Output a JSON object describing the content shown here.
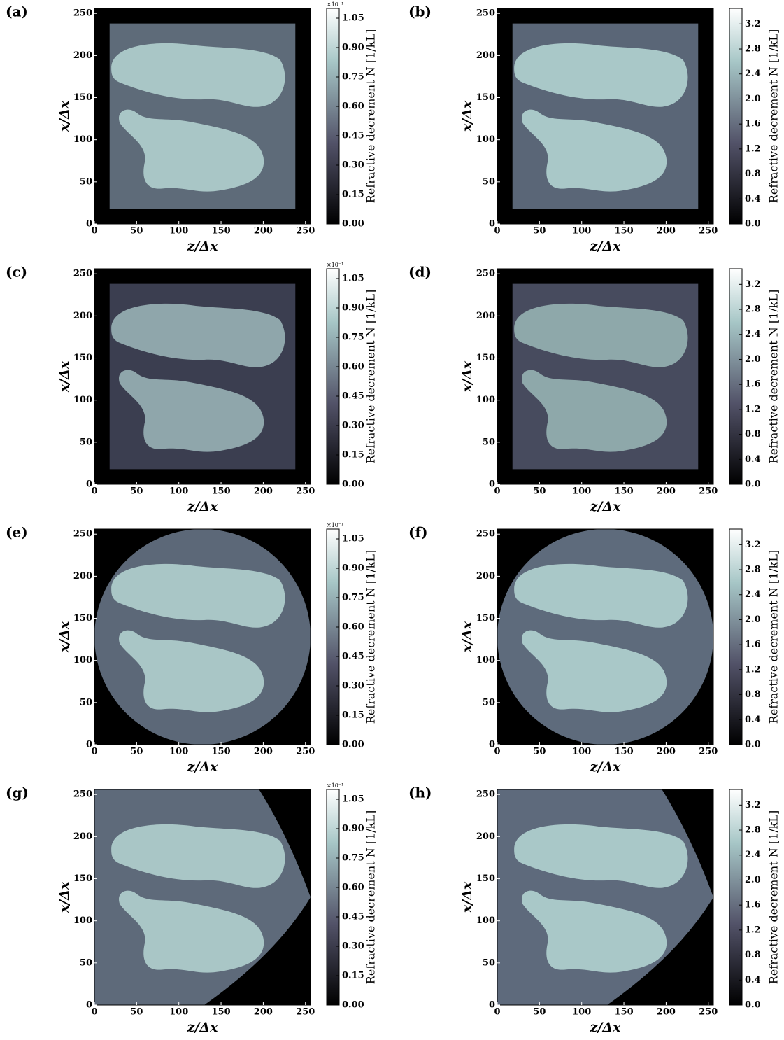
{
  "chart_data": [
    {
      "type": "image",
      "label": "(a)",
      "xlabel": "z/Δx",
      "ylabel": "x/Δx",
      "xlim": [
        0,
        256
      ],
      "ylim": [
        0,
        256
      ],
      "xticks": [
        0,
        50,
        100,
        150,
        200,
        250
      ],
      "yticks": [
        0,
        50,
        100,
        150,
        200,
        250
      ],
      "colorbar": {
        "label": "Refractive decrement N [1/kL]",
        "multiplier": "×10⁻¹",
        "lim": [
          0,
          1.1
        ],
        "ticks": [
          {
            "value": 0,
            "label": "0.00"
          },
          0.15,
          {
            "value": 0.3,
            "label": "0.30"
          },
          0.45,
          {
            "value": 0.6,
            "label": "0.60"
          },
          0.75,
          {
            "value": 0.9,
            "label": "0.90"
          },
          1.05
        ]
      }
    },
    {
      "type": "image",
      "label": "(b)",
      "xlabel": "z/Δx",
      "ylabel": "x/Δx",
      "xlim": [
        0,
        256
      ],
      "ylim": [
        0,
        256
      ],
      "xticks": [
        0,
        50,
        100,
        150,
        200,
        250
      ],
      "yticks": [
        0,
        50,
        100,
        150,
        200,
        250
      ],
      "colorbar": {
        "label": "Refractive decrement N [1/kL]",
        "lim": [
          0,
          3.45
        ],
        "ticks": [
          {
            "value": 0,
            "label": "0.0"
          },
          0.4,
          0.8,
          1.2,
          1.6,
          {
            "value": 2,
            "label": "2.0"
          },
          2.4,
          2.8,
          3.2
        ]
      }
    },
    {
      "type": "image",
      "label": "(c)",
      "xlabel": "z/Δx",
      "ylabel": "x/Δx",
      "xlim": [
        0,
        256
      ],
      "ylim": [
        0,
        256
      ],
      "xticks": [
        0,
        50,
        100,
        150,
        200,
        250
      ],
      "yticks": [
        0,
        50,
        100,
        150,
        200,
        250
      ],
      "colorbar": {
        "label": "Refractive decrement N [1/kL]",
        "multiplier": "×10⁻¹",
        "lim": [
          0,
          1.1
        ],
        "ticks": [
          {
            "value": 0,
            "label": "0.00"
          },
          0.15,
          {
            "value": 0.3,
            "label": "0.30"
          },
          0.45,
          {
            "value": 0.6,
            "label": "0.60"
          },
          0.75,
          {
            "value": 0.9,
            "label": "0.90"
          },
          1.05
        ]
      }
    },
    {
      "type": "image",
      "label": "(d)",
      "xlabel": "z/Δx",
      "ylabel": "x/Δx",
      "xlim": [
        0,
        256
      ],
      "ylim": [
        0,
        256
      ],
      "xticks": [
        0,
        50,
        100,
        150,
        200,
        250
      ],
      "yticks": [
        0,
        50,
        100,
        150,
        200,
        250
      ],
      "colorbar": {
        "label": "Refractive decrement N [1/kL]",
        "lim": [
          0,
          3.45
        ],
        "ticks": [
          {
            "value": 0,
            "label": "0.0"
          },
          0.4,
          0.8,
          1.2,
          1.6,
          {
            "value": 2,
            "label": "2.0"
          },
          2.4,
          2.8,
          3.2
        ]
      }
    },
    {
      "type": "image",
      "label": "(e)",
      "xlabel": "z/Δx",
      "ylabel": "x/Δx",
      "xlim": [
        0,
        256
      ],
      "ylim": [
        0,
        256
      ],
      "xticks": [
        0,
        50,
        100,
        150,
        200,
        250
      ],
      "yticks": [
        0,
        50,
        100,
        150,
        200,
        250
      ],
      "colorbar": {
        "label": "Refractive decrement N [1/kL]",
        "multiplier": "×10⁻¹",
        "lim": [
          0,
          1.1
        ],
        "ticks": [
          {
            "value": 0,
            "label": "0.00"
          },
          0.15,
          {
            "value": 0.3,
            "label": "0.30"
          },
          0.45,
          {
            "value": 0.6,
            "label": "0.60"
          },
          0.75,
          {
            "value": 0.9,
            "label": "0.90"
          },
          1.05
        ]
      }
    },
    {
      "type": "image",
      "label": "(f)",
      "xlabel": "z/Δx",
      "ylabel": "x/Δx",
      "xlim": [
        0,
        256
      ],
      "ylim": [
        0,
        256
      ],
      "xticks": [
        0,
        50,
        100,
        150,
        200,
        250
      ],
      "yticks": [
        0,
        50,
        100,
        150,
        200,
        250
      ],
      "colorbar": {
        "label": "Refractive decrement N [1/kL]",
        "lim": [
          0,
          3.45
        ],
        "ticks": [
          {
            "value": 0,
            "label": "0.0"
          },
          0.4,
          0.8,
          1.2,
          1.6,
          {
            "value": 2,
            "label": "2.0"
          },
          2.4,
          2.8,
          3.2
        ]
      }
    },
    {
      "type": "image",
      "label": "(g)",
      "xlabel": "z/Δx",
      "ylabel": "x/Δx",
      "xlim": [
        0,
        256
      ],
      "ylim": [
        0,
        256
      ],
      "xticks": [
        0,
        50,
        100,
        150,
        200,
        250
      ],
      "yticks": [
        0,
        50,
        100,
        150,
        200,
        250
      ],
      "colorbar": {
        "label": "Refractive decrement N [1/kL]",
        "multiplier": "×10⁻¹",
        "lim": [
          0,
          1.1
        ],
        "ticks": [
          {
            "value": 0,
            "label": "0.00"
          },
          0.15,
          {
            "value": 0.3,
            "label": "0.30"
          },
          0.45,
          {
            "value": 0.6,
            "label": "0.60"
          },
          0.75,
          {
            "value": 0.9,
            "label": "0.90"
          },
          1.05
        ]
      }
    },
    {
      "type": "image",
      "label": "(h)",
      "xlabel": "z/Δx",
      "ylabel": "x/Δx",
      "xlim": [
        0,
        256
      ],
      "ylim": [
        0,
        256
      ],
      "xticks": [
        0,
        50,
        100,
        150,
        200,
        250
      ],
      "yticks": [
        0,
        50,
        100,
        150,
        200,
        250
      ],
      "colorbar": {
        "label": "Refractive decrement N [1/kL]",
        "lim": [
          0,
          3.45
        ],
        "ticks": [
          {
            "value": 0,
            "label": "0.0"
          },
          0.4,
          0.8,
          1.2,
          1.6,
          {
            "value": 2,
            "label": "2.0"
          },
          2.4,
          2.8,
          3.2
        ]
      }
    }
  ]
}
